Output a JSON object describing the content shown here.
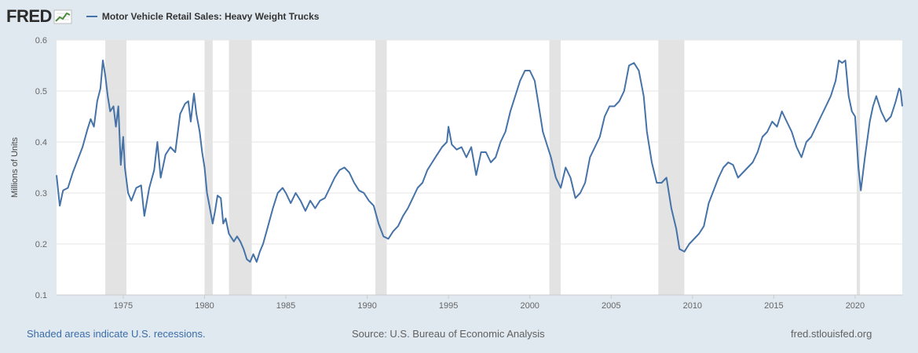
{
  "logo": {
    "text": "FRED",
    "icon": "trend-chart-icon"
  },
  "legend": {
    "label": "Motor Vehicle Retail Sales: Heavy Weight Trucks",
    "color": "#4572a7"
  },
  "footer": {
    "recessions_note": "Shaded areas indicate U.S. recessions.",
    "source": "Source: U.S. Bureau of Economic Analysis",
    "site": "fred.stlouisfed.org"
  },
  "chart_data": {
    "type": "line",
    "title": "",
    "xlabel": "",
    "ylabel": "Millions of Units",
    "xlim": [
      1970.9,
      2022.9
    ],
    "ylim": [
      0.1,
      0.6
    ],
    "x_ticks": [
      1975,
      1980,
      1985,
      1990,
      1995,
      2000,
      2005,
      2010,
      2015,
      2020
    ],
    "y_ticks": [
      0.1,
      0.2,
      0.3,
      0.4,
      0.5,
      0.6
    ],
    "y_tick_labels": [
      "0.1",
      "0.2",
      "0.3",
      "0.4",
      "0.5",
      "0.6"
    ],
    "grid": true,
    "legend_position": "top-left",
    "line_color": "#4572a7",
    "recession_color": "#e3e3e3",
    "recessions": [
      [
        1973.9,
        1975.2
      ],
      [
        1980.0,
        1980.5
      ],
      [
        1981.5,
        1982.9
      ],
      [
        1990.5,
        1991.2
      ],
      [
        2001.2,
        2001.9
      ],
      [
        2007.9,
        2009.5
      ],
      [
        2020.1,
        2020.3
      ]
    ],
    "series": [
      {
        "name": "Motor Vehicle Retail Sales: Heavy Weight Trucks",
        "points": [
          [
            1970.9,
            0.335
          ],
          [
            1971.1,
            0.275
          ],
          [
            1971.3,
            0.305
          ],
          [
            1971.6,
            0.31
          ],
          [
            1971.9,
            0.34
          ],
          [
            1972.2,
            0.365
          ],
          [
            1972.5,
            0.39
          ],
          [
            1972.8,
            0.425
          ],
          [
            1973.0,
            0.445
          ],
          [
            1973.2,
            0.43
          ],
          [
            1973.4,
            0.48
          ],
          [
            1973.6,
            0.505
          ],
          [
            1973.75,
            0.56
          ],
          [
            1973.9,
            0.53
          ],
          [
            1974.05,
            0.49
          ],
          [
            1974.2,
            0.46
          ],
          [
            1974.4,
            0.47
          ],
          [
            1974.55,
            0.43
          ],
          [
            1974.7,
            0.47
          ],
          [
            1974.85,
            0.355
          ],
          [
            1975.0,
            0.41
          ],
          [
            1975.1,
            0.35
          ],
          [
            1975.3,
            0.3
          ],
          [
            1975.5,
            0.285
          ],
          [
            1975.8,
            0.31
          ],
          [
            1976.1,
            0.315
          ],
          [
            1976.3,
            0.255
          ],
          [
            1976.6,
            0.31
          ],
          [
            1976.9,
            0.345
          ],
          [
            1977.1,
            0.4
          ],
          [
            1977.3,
            0.33
          ],
          [
            1977.6,
            0.375
          ],
          [
            1977.9,
            0.39
          ],
          [
            1978.2,
            0.38
          ],
          [
            1978.5,
            0.455
          ],
          [
            1978.8,
            0.475
          ],
          [
            1979.0,
            0.48
          ],
          [
            1979.15,
            0.44
          ],
          [
            1979.35,
            0.495
          ],
          [
            1979.5,
            0.455
          ],
          [
            1979.7,
            0.42
          ],
          [
            1979.85,
            0.38
          ],
          [
            1980.0,
            0.35
          ],
          [
            1980.15,
            0.3
          ],
          [
            1980.3,
            0.275
          ],
          [
            1980.5,
            0.24
          ],
          [
            1980.65,
            0.265
          ],
          [
            1980.8,
            0.295
          ],
          [
            1981.0,
            0.29
          ],
          [
            1981.15,
            0.24
          ],
          [
            1981.3,
            0.25
          ],
          [
            1981.5,
            0.22
          ],
          [
            1981.8,
            0.205
          ],
          [
            1982.0,
            0.215
          ],
          [
            1982.2,
            0.205
          ],
          [
            1982.4,
            0.19
          ],
          [
            1982.6,
            0.17
          ],
          [
            1982.8,
            0.165
          ],
          [
            1983.0,
            0.18
          ],
          [
            1983.2,
            0.165
          ],
          [
            1983.4,
            0.185
          ],
          [
            1983.6,
            0.2
          ],
          [
            1983.9,
            0.235
          ],
          [
            1984.2,
            0.27
          ],
          [
            1984.5,
            0.3
          ],
          [
            1984.8,
            0.31
          ],
          [
            1985.0,
            0.3
          ],
          [
            1985.3,
            0.28
          ],
          [
            1985.6,
            0.3
          ],
          [
            1985.9,
            0.285
          ],
          [
            1986.2,
            0.265
          ],
          [
            1986.5,
            0.285
          ],
          [
            1986.8,
            0.27
          ],
          [
            1987.1,
            0.285
          ],
          [
            1987.4,
            0.29
          ],
          [
            1987.7,
            0.31
          ],
          [
            1988.0,
            0.33
          ],
          [
            1988.3,
            0.345
          ],
          [
            1988.6,
            0.35
          ],
          [
            1988.9,
            0.34
          ],
          [
            1989.2,
            0.32
          ],
          [
            1989.5,
            0.305
          ],
          [
            1989.8,
            0.3
          ],
          [
            1990.1,
            0.285
          ],
          [
            1990.4,
            0.275
          ],
          [
            1990.7,
            0.24
          ],
          [
            1991.0,
            0.215
          ],
          [
            1991.3,
            0.21
          ],
          [
            1991.6,
            0.225
          ],
          [
            1991.9,
            0.235
          ],
          [
            1992.2,
            0.255
          ],
          [
            1992.5,
            0.27
          ],
          [
            1992.8,
            0.29
          ],
          [
            1993.1,
            0.31
          ],
          [
            1993.4,
            0.32
          ],
          [
            1993.7,
            0.345
          ],
          [
            1994.0,
            0.36
          ],
          [
            1994.3,
            0.375
          ],
          [
            1994.6,
            0.39
          ],
          [
            1994.9,
            0.4
          ],
          [
            1995.0,
            0.43
          ],
          [
            1995.2,
            0.395
          ],
          [
            1995.5,
            0.385
          ],
          [
            1995.8,
            0.39
          ],
          [
            1996.1,
            0.37
          ],
          [
            1996.4,
            0.39
          ],
          [
            1996.7,
            0.335
          ],
          [
            1997.0,
            0.38
          ],
          [
            1997.3,
            0.38
          ],
          [
            1997.6,
            0.36
          ],
          [
            1997.9,
            0.37
          ],
          [
            1998.2,
            0.4
          ],
          [
            1998.5,
            0.42
          ],
          [
            1998.8,
            0.46
          ],
          [
            1999.1,
            0.49
          ],
          [
            1999.4,
            0.52
          ],
          [
            1999.7,
            0.54
          ],
          [
            2000.0,
            0.54
          ],
          [
            2000.3,
            0.52
          ],
          [
            2000.5,
            0.48
          ],
          [
            2000.8,
            0.42
          ],
          [
            2001.0,
            0.4
          ],
          [
            2001.3,
            0.37
          ],
          [
            2001.6,
            0.33
          ],
          [
            2001.9,
            0.31
          ],
          [
            2002.2,
            0.35
          ],
          [
            2002.5,
            0.33
          ],
          [
            2002.8,
            0.29
          ],
          [
            2003.1,
            0.3
          ],
          [
            2003.4,
            0.32
          ],
          [
            2003.7,
            0.37
          ],
          [
            2004.0,
            0.39
          ],
          [
            2004.3,
            0.41
          ],
          [
            2004.6,
            0.45
          ],
          [
            2004.9,
            0.47
          ],
          [
            2005.2,
            0.47
          ],
          [
            2005.5,
            0.48
          ],
          [
            2005.8,
            0.5
          ],
          [
            2006.1,
            0.55
          ],
          [
            2006.4,
            0.555
          ],
          [
            2006.7,
            0.54
          ],
          [
            2007.0,
            0.49
          ],
          [
            2007.2,
            0.42
          ],
          [
            2007.5,
            0.36
          ],
          [
            2007.8,
            0.32
          ],
          [
            2008.1,
            0.32
          ],
          [
            2008.4,
            0.33
          ],
          [
            2008.7,
            0.27
          ],
          [
            2009.0,
            0.23
          ],
          [
            2009.2,
            0.19
          ],
          [
            2009.5,
            0.185
          ],
          [
            2009.8,
            0.2
          ],
          [
            2010.1,
            0.21
          ],
          [
            2010.4,
            0.22
          ],
          [
            2010.7,
            0.235
          ],
          [
            2011.0,
            0.28
          ],
          [
            2011.3,
            0.305
          ],
          [
            2011.6,
            0.33
          ],
          [
            2011.9,
            0.35
          ],
          [
            2012.2,
            0.36
          ],
          [
            2012.5,
            0.355
          ],
          [
            2012.8,
            0.33
          ],
          [
            2013.1,
            0.34
          ],
          [
            2013.4,
            0.35
          ],
          [
            2013.7,
            0.36
          ],
          [
            2014.0,
            0.38
          ],
          [
            2014.3,
            0.41
          ],
          [
            2014.6,
            0.42
          ],
          [
            2014.9,
            0.44
          ],
          [
            2015.2,
            0.43
          ],
          [
            2015.5,
            0.46
          ],
          [
            2015.8,
            0.44
          ],
          [
            2016.1,
            0.42
          ],
          [
            2016.4,
            0.39
          ],
          [
            2016.7,
            0.37
          ],
          [
            2017.0,
            0.4
          ],
          [
            2017.3,
            0.41
          ],
          [
            2017.6,
            0.43
          ],
          [
            2017.9,
            0.45
          ],
          [
            2018.2,
            0.47
          ],
          [
            2018.5,
            0.49
          ],
          [
            2018.8,
            0.52
          ],
          [
            2019.0,
            0.56
          ],
          [
            2019.2,
            0.555
          ],
          [
            2019.4,
            0.56
          ],
          [
            2019.6,
            0.49
          ],
          [
            2019.8,
            0.46
          ],
          [
            2020.0,
            0.45
          ],
          [
            2020.2,
            0.35
          ],
          [
            2020.35,
            0.305
          ],
          [
            2020.6,
            0.37
          ],
          [
            2020.9,
            0.44
          ],
          [
            2021.1,
            0.47
          ],
          [
            2021.3,
            0.49
          ],
          [
            2021.6,
            0.46
          ],
          [
            2021.9,
            0.44
          ],
          [
            2022.2,
            0.45
          ],
          [
            2022.5,
            0.48
          ],
          [
            2022.7,
            0.505
          ],
          [
            2022.8,
            0.5
          ],
          [
            2022.9,
            0.47
          ]
        ]
      }
    ]
  }
}
